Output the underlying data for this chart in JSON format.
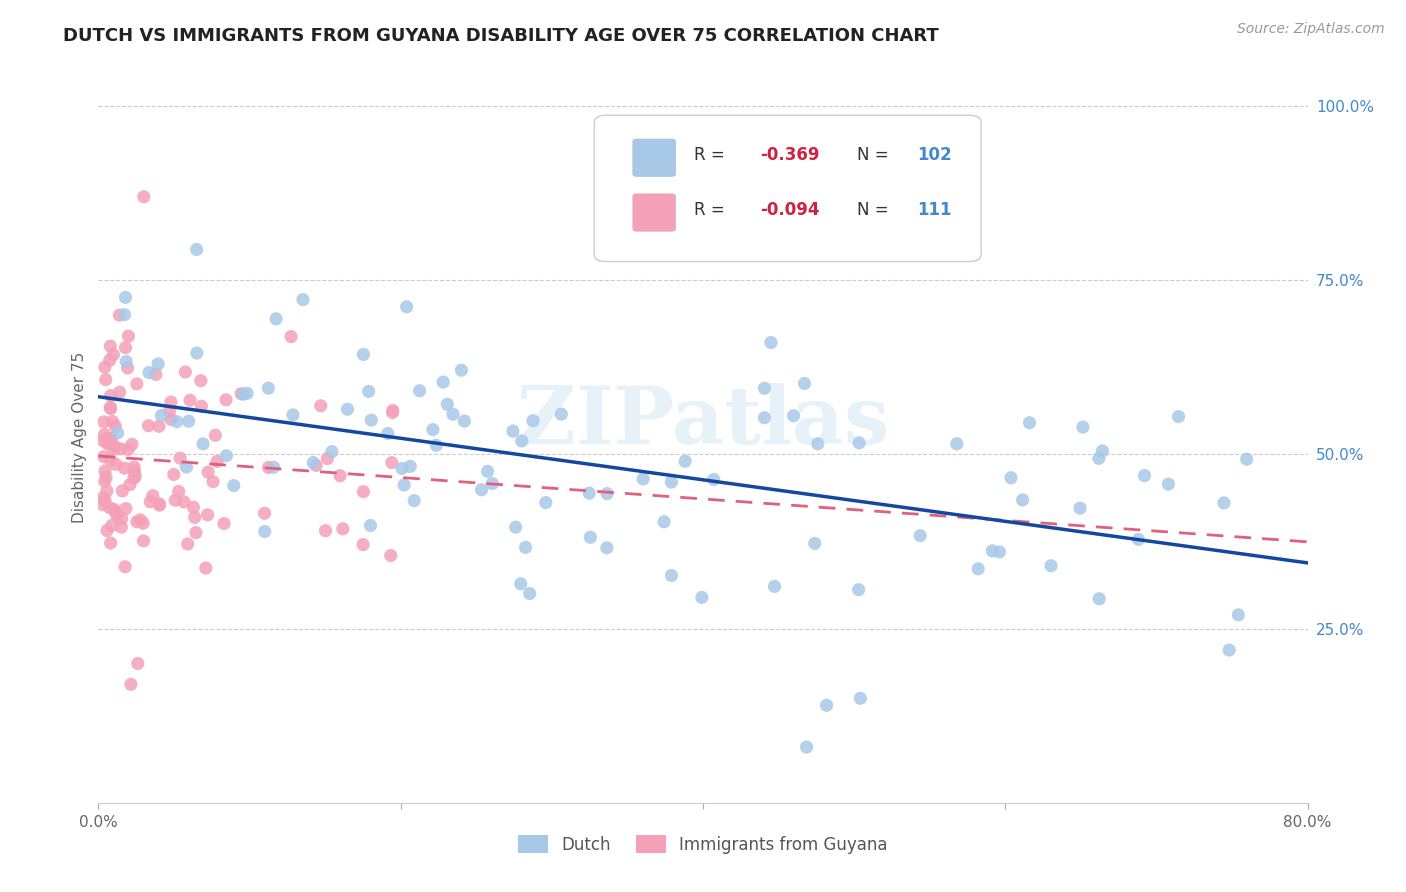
{
  "title": "DUTCH VS IMMIGRANTS FROM GUYANA DISABILITY AGE OVER 75 CORRELATION CHART",
  "source": "Source: ZipAtlas.com",
  "ylabel": "Disability Age Over 75",
  "x_min": 0.0,
  "x_max": 0.8,
  "y_min": 0.0,
  "y_max": 1.05,
  "y_tick_labels_right": [
    "25.0%",
    "50.0%",
    "75.0%",
    "100.0%"
  ],
  "y_tick_positions_right": [
    0.25,
    0.5,
    0.75,
    1.0
  ],
  "dutch_color": "#a8c8e8",
  "guyana_color": "#f4a0b8",
  "dutch_line_color": "#1448a0",
  "guyana_line_color": "#e06080",
  "legend_dutch_label": "Dutch",
  "legend_guyana_label": "Immigrants from Guyana",
  "R_dutch": -0.369,
  "N_dutch": 102,
  "R_guyana": -0.094,
  "N_guyana": 111,
  "watermark": "ZIPatlas",
  "title_fontsize": 13,
  "tick_label_color": "#666666",
  "right_tick_color": "#4488cc"
}
